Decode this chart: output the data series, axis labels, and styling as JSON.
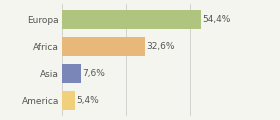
{
  "categories": [
    "Europa",
    "Africa",
    "Asia",
    "America"
  ],
  "values": [
    54.4,
    32.6,
    7.6,
    5.4
  ],
  "labels": [
    "54,4%",
    "32,6%",
    "7,6%",
    "5,4%"
  ],
  "bar_colors": [
    "#aec47f",
    "#e8b87a",
    "#7b86b8",
    "#f0d07a"
  ],
  "background_color": "#f5f5f0",
  "xlim": [
    0,
    72
  ],
  "bar_height": 0.72,
  "label_fontsize": 6.5,
  "category_fontsize": 6.5,
  "grid_xticks": [
    0,
    25,
    50
  ],
  "grid_color": "#cccccc",
  "text_color": "#555555"
}
